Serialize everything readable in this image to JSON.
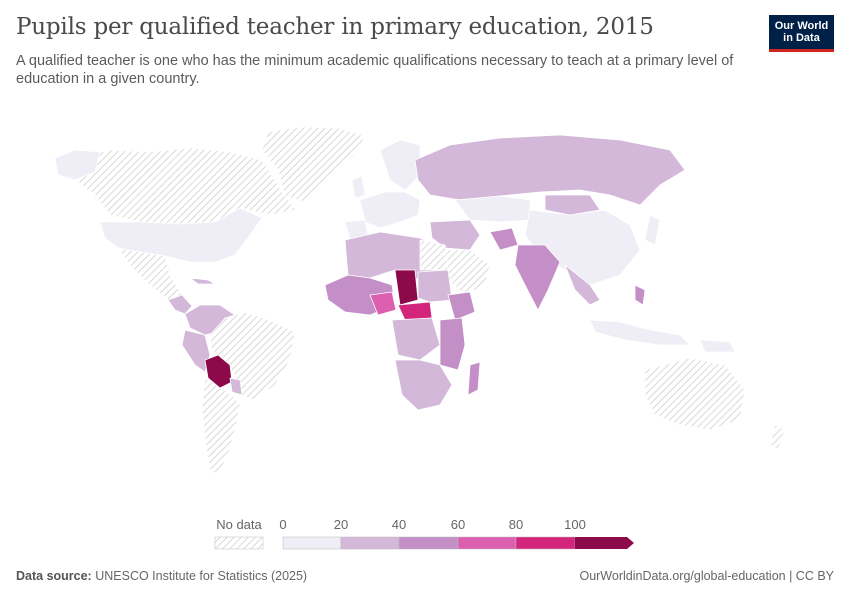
{
  "header": {
    "title": "Pupils per qualified teacher in primary education, 2015",
    "subtitle": "A qualified teacher is one who has the minimum academic qualifications necessary to teach at a primary level of education in a given country."
  },
  "logo": {
    "line1": "Our World",
    "line2": "in Data"
  },
  "legend": {
    "no_data_label": "No data",
    "ticks": [
      "0",
      "20",
      "40",
      "60",
      "80",
      "100"
    ],
    "colors": [
      "#efedf5",
      "#d3b8d9",
      "#c48ec7",
      "#dd5fb0",
      "#d4257c",
      "#8c0a4a"
    ]
  },
  "footer": {
    "source_label": "Data source:",
    "source_text": "UNESCO Institute for Statistics (2025)",
    "url": "OurWorldinData.org/global-education | CC BY"
  },
  "map_colors": {
    "no_data": "#e8e8e8",
    "border": "#ffffff"
  }
}
